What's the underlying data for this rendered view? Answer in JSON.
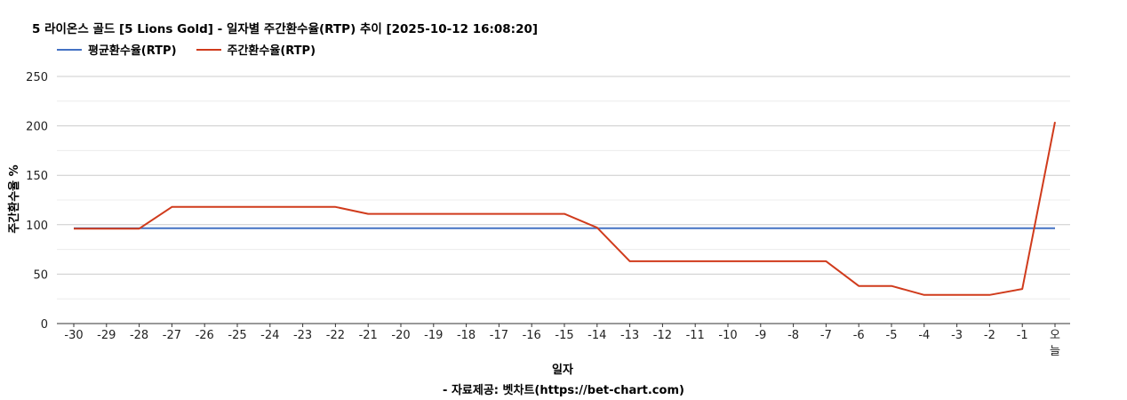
{
  "chart_data": {
    "type": "line",
    "title": "5 라이온스 골드 [5 Lions Gold] - 일자별 주간환수율(RTP) 추이 [2025-10-12 16:08:20]",
    "xlabel": "일자",
    "ylabel": "주간환수율 %",
    "source": "- 자료제공: 벳차트(https://bet-chart.com)",
    "ylim": [
      0,
      250
    ],
    "yticks": [
      0,
      50,
      100,
      150,
      200,
      250
    ],
    "grid": true,
    "legend_position": "top-left",
    "categories": [
      "-30",
      "-29",
      "-28",
      "-27",
      "-26",
      "-25",
      "-24",
      "-23",
      "-22",
      "-21",
      "-20",
      "-19",
      "-18",
      "-17",
      "-16",
      "-15",
      "-14",
      "-13",
      "-12",
      "-11",
      "-10",
      "-9",
      "-8",
      "-7",
      "-6",
      "-5",
      "-4",
      "-3",
      "-2",
      "-1",
      "오늘"
    ],
    "series": [
      {
        "name": "평균환수율(RTP)",
        "color": "#4472c4",
        "values": [
          96.5,
          96.5,
          96.5,
          96.5,
          96.5,
          96.5,
          96.5,
          96.5,
          96.5,
          96.5,
          96.5,
          96.5,
          96.5,
          96.5,
          96.5,
          96.5,
          96.5,
          96.5,
          96.5,
          96.5,
          96.5,
          96.5,
          96.5,
          96.5,
          96.5,
          96.5,
          96.5,
          96.5,
          96.5,
          96.5,
          96.5
        ]
      },
      {
        "name": "주간환수율(RTP)",
        "color": "#d03b1c",
        "values": [
          96,
          96,
          96,
          118,
          118,
          118,
          118,
          118,
          118,
          111,
          111,
          111,
          111,
          111,
          111,
          111,
          97,
          63,
          63,
          63,
          63,
          63,
          63,
          63,
          38,
          38,
          29,
          29,
          29,
          35,
          204
        ]
      }
    ]
  }
}
